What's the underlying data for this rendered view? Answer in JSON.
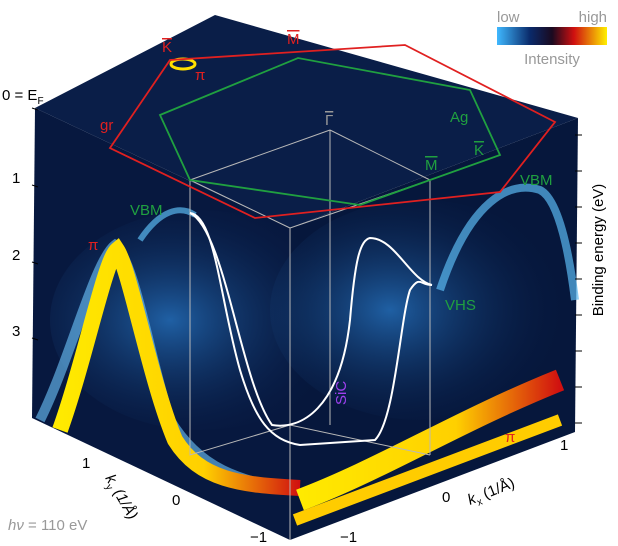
{
  "colorbar": {
    "low": "low",
    "high": "high",
    "title": "Intensity"
  },
  "energy_axis": {
    "zero_main": "0 = E",
    "zero_sub": "F",
    "ticks": [
      "0",
      "1",
      "2",
      "3"
    ],
    "title": "Binding energy (eV)"
  },
  "top_labels": {
    "k_gr": "K",
    "m_gr": "M",
    "pi_top": "π",
    "gr": "gr",
    "ag": "Ag",
    "k_ag": "K",
    "m_ag": "M",
    "gamma": "Γ"
  },
  "band_labels": {
    "vbm_left": "VBM",
    "vbm_right": "VBM",
    "pi_left": "π",
    "pi_right": "π",
    "vhs": "VHS",
    "sic": "SiC"
  },
  "ky_axis": {
    "main": "k",
    "sub": "y",
    "unit": " (1/Å)",
    "ticks": [
      "1",
      "0",
      "−1"
    ]
  },
  "kx_axis": {
    "main": "k",
    "sub": "x",
    "unit": " (1/Å)",
    "ticks": [
      "1",
      "0",
      "−1"
    ]
  },
  "photon": {
    "symbol": "hν",
    "text": " = 110 eV"
  }
}
